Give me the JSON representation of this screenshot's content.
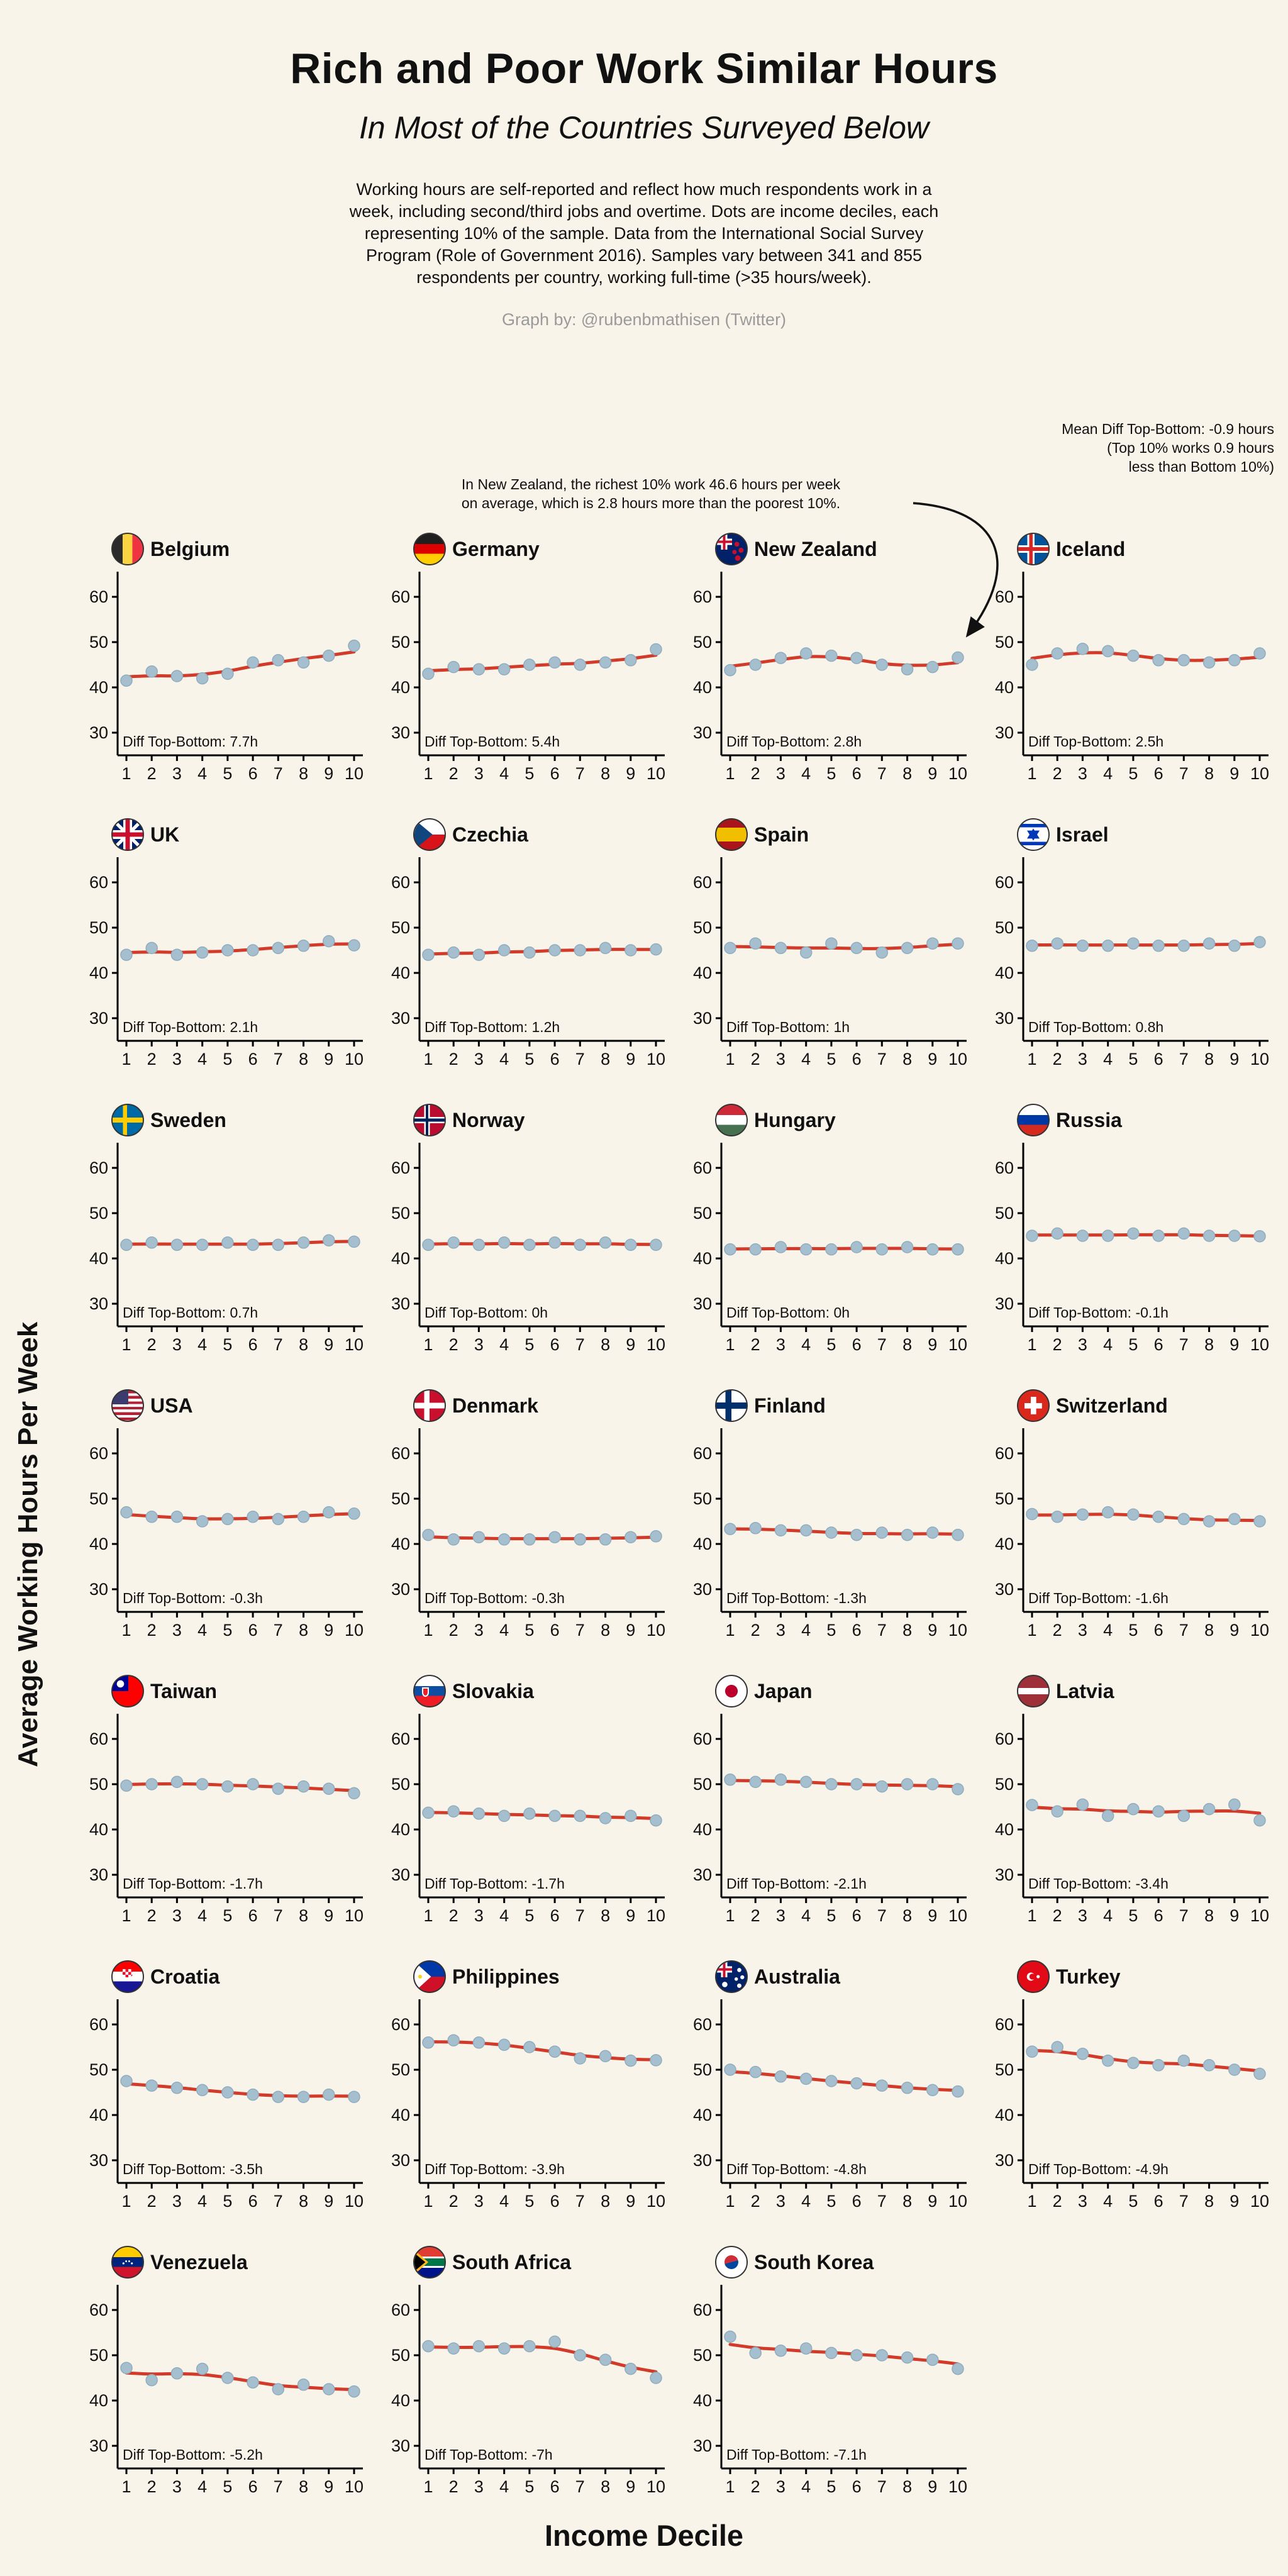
{
  "title": "Rich and Poor Work Similar Hours",
  "subtitle": "In Most of the Countries Surveyed Below",
  "description": "Working hours are self-reported and reflect how much respondents work in a week, including second/third jobs and overtime. Dots are income deciles, each representing 10% of the sample. Data from the International Social Survey Program (Role of Government 2016). Samples vary between 341 and 855 respondents per country, working full-time (>35 hours/week).",
  "credit": "Graph by: @rubenbmathisen (Twitter)",
  "mean_note": "Mean Diff Top-Bottom: -0.9 hours\n(Top 10% works 0.9 hours\nless than Bottom 10%)",
  "nz_note": "In New Zealand, the richest 10% work 46.6 hours per week\non average, which is 2.8 hours more than the poorest 10%.",
  "ylabel": "Average Working Hours Per Week",
  "xlabel": "Income Decile",
  "colors": {
    "background": "#f9f4e9",
    "trend_line": "#d23a2a",
    "dot": "#a6bfcf",
    "credit_gray": "#9a9a9a"
  },
  "chart_data": {
    "type": "scatter",
    "x": [
      1,
      2,
      3,
      4,
      5,
      6,
      7,
      8,
      9,
      10
    ],
    "xlabel": "Income Decile",
    "ylabel": "Average Working Hours Per Week",
    "ylim": [
      25,
      65
    ],
    "yticks": [
      30,
      40,
      50,
      60
    ],
    "panels": [
      {
        "id": "belgium",
        "country": "Belgium",
        "diff_label": "Diff Top-Bottom: 7.7h",
        "diff_hours": 7.7,
        "values": [
          41.5,
          43.5,
          42.5,
          42,
          43,
          45.5,
          46,
          45.5,
          47,
          49.2
        ]
      },
      {
        "id": "germany",
        "country": "Germany",
        "diff_label": "Diff Top-Bottom: 5.4h",
        "diff_hours": 5.4,
        "values": [
          43,
          44.5,
          44,
          44,
          45,
          45.5,
          45,
          45.5,
          46,
          48.4
        ]
      },
      {
        "id": "newzealand",
        "country": "New Zealand",
        "diff_label": "Diff Top-Bottom: 2.8h",
        "diff_hours": 2.8,
        "values": [
          43.8,
          45,
          46.5,
          47.5,
          47,
          46.5,
          45,
          44,
          44.5,
          46.6
        ]
      },
      {
        "id": "iceland",
        "country": "Iceland",
        "diff_label": "Diff Top-Bottom: 2.5h",
        "diff_hours": 2.5,
        "values": [
          45,
          47.5,
          48.5,
          48,
          47,
          46,
          46,
          45.5,
          46,
          47.5
        ]
      },
      {
        "id": "uk",
        "country": "UK",
        "diff_label": "Diff Top-Bottom: 2.1h",
        "diff_hours": 2.1,
        "values": [
          44,
          45.5,
          44,
          44.5,
          45,
          45,
          45.5,
          46,
          47,
          46.1
        ]
      },
      {
        "id": "czechia",
        "country": "Czechia",
        "diff_label": "Diff Top-Bottom: 1.2h",
        "diff_hours": 1.2,
        "values": [
          44,
          44.5,
          44,
          45,
          44.5,
          45,
          45,
          45.5,
          45,
          45.2
        ]
      },
      {
        "id": "spain",
        "country": "Spain",
        "diff_label": "Diff Top-Bottom: 1h",
        "diff_hours": 1,
        "values": [
          45.5,
          46.5,
          45.5,
          44.5,
          46.5,
          45.5,
          44.5,
          45.5,
          46.5,
          46.5
        ]
      },
      {
        "id": "israel",
        "country": "Israel",
        "diff_label": "Diff Top-Bottom: 0.8h",
        "diff_hours": 0.8,
        "values": [
          46,
          46.5,
          46,
          46,
          46.5,
          46,
          46,
          46.5,
          46,
          46.8
        ]
      },
      {
        "id": "sweden",
        "country": "Sweden",
        "diff_label": "Diff Top-Bottom: 0.7h",
        "diff_hours": 0.7,
        "values": [
          43,
          43.5,
          43,
          43,
          43.5,
          43,
          43,
          43.5,
          44,
          43.7
        ]
      },
      {
        "id": "norway",
        "country": "Norway",
        "diff_label": "Diff Top-Bottom: 0h",
        "diff_hours": 0,
        "values": [
          43,
          43.5,
          43,
          43.5,
          43,
          43.5,
          43,
          43.5,
          43,
          43
        ]
      },
      {
        "id": "hungary",
        "country": "Hungary",
        "diff_label": "Diff Top-Bottom: 0h",
        "diff_hours": 0,
        "values": [
          42,
          42,
          42.5,
          42,
          42,
          42.5,
          42,
          42.5,
          42,
          42
        ]
      },
      {
        "id": "russia",
        "country": "Russia",
        "diff_label": "Diff Top-Bottom: -0.1h",
        "diff_hours": -0.1,
        "values": [
          45,
          45.5,
          45,
          45,
          45.5,
          45,
          45.5,
          45,
          45,
          44.9
        ]
      },
      {
        "id": "usa",
        "country": "USA",
        "diff_label": "Diff Top-Bottom: -0.3h",
        "diff_hours": -0.3,
        "values": [
          47,
          46,
          46,
          45,
          45.5,
          46,
          45.5,
          46,
          47,
          46.7
        ]
      },
      {
        "id": "denmark",
        "country": "Denmark",
        "diff_label": "Diff Top-Bottom: -0.3h",
        "diff_hours": -0.3,
        "values": [
          42,
          41,
          41.5,
          41,
          41,
          41.5,
          41,
          41,
          41.5,
          41.7
        ]
      },
      {
        "id": "finland",
        "country": "Finland",
        "diff_label": "Diff Top-Bottom: -1.3h",
        "diff_hours": -1.3,
        "values": [
          43.3,
          43.5,
          43,
          43,
          42.5,
          42,
          42.5,
          42,
          42.5,
          42
        ]
      },
      {
        "id": "switzerland",
        "country": "Switzerland",
        "diff_label": "Diff Top-Bottom: -1.6h",
        "diff_hours": -1.6,
        "values": [
          46.6,
          46,
          46.5,
          47,
          46.5,
          46,
          45.5,
          45,
          45.5,
          45
        ]
      },
      {
        "id": "taiwan",
        "country": "Taiwan",
        "diff_label": "Diff Top-Bottom: -1.7h",
        "diff_hours": -1.7,
        "values": [
          49.7,
          50,
          50.5,
          50,
          49.5,
          50,
          49,
          49.5,
          49,
          48
        ]
      },
      {
        "id": "slovakia",
        "country": "Slovakia",
        "diff_label": "Diff Top-Bottom: -1.7h",
        "diff_hours": -1.7,
        "values": [
          43.7,
          44,
          43.5,
          43,
          43.5,
          43,
          43,
          42.5,
          43,
          42
        ]
      },
      {
        "id": "japan",
        "country": "Japan",
        "diff_label": "Diff Top-Bottom: -2.1h",
        "diff_hours": -2.1,
        "values": [
          51,
          50.5,
          51,
          50.5,
          50,
          50,
          49.5,
          50,
          50,
          48.9
        ]
      },
      {
        "id": "latvia",
        "country": "Latvia",
        "diff_label": "Diff Top-Bottom: -3.4h",
        "diff_hours": -3.4,
        "values": [
          45.4,
          44,
          45.5,
          43,
          44.5,
          44,
          43,
          44.5,
          45.5,
          42
        ]
      },
      {
        "id": "croatia",
        "country": "Croatia",
        "diff_label": "Diff Top-Bottom: -3.5h",
        "diff_hours": -3.5,
        "values": [
          47.5,
          46.5,
          46,
          45.5,
          45,
          44.5,
          44,
          44,
          44.5,
          44
        ]
      },
      {
        "id": "philippines",
        "country": "Philippines",
        "diff_label": "Diff Top-Bottom: -3.9h",
        "diff_hours": -3.9,
        "values": [
          56,
          56.5,
          56,
          55.5,
          55,
          54,
          52.5,
          53,
          52,
          52.1
        ]
      },
      {
        "id": "australia",
        "country": "Australia",
        "diff_label": "Diff Top-Bottom: -4.8h",
        "diff_hours": -4.8,
        "values": [
          50,
          49.5,
          48.5,
          48,
          47.5,
          47,
          46.5,
          46,
          45.5,
          45.2
        ]
      },
      {
        "id": "turkey",
        "country": "Turkey",
        "diff_label": "Diff Top-Bottom: -4.9h",
        "diff_hours": -4.9,
        "values": [
          54,
          55,
          53.5,
          52,
          51.5,
          51,
          52,
          51,
          50,
          49.1
        ]
      },
      {
        "id": "venezuela",
        "country": "Venezuela",
        "diff_label": "Diff Top-Bottom: -5.2h",
        "diff_hours": -5.2,
        "values": [
          47.2,
          44.5,
          46,
          47,
          45,
          44,
          42.5,
          43.5,
          42.5,
          42
        ]
      },
      {
        "id": "southafrica",
        "country": "South Africa",
        "diff_label": "Diff Top-Bottom: -7h",
        "diff_hours": -7,
        "values": [
          52,
          51.5,
          52,
          51.5,
          52,
          53,
          50,
          49,
          47,
          45
        ]
      },
      {
        "id": "southkorea",
        "country": "South Korea",
        "diff_label": "Diff Top-Bottom: -7.1h",
        "diff_hours": -7.1,
        "values": [
          54.1,
          50.5,
          51,
          51.5,
          50.5,
          50,
          50,
          49.5,
          49,
          47
        ]
      }
    ]
  }
}
